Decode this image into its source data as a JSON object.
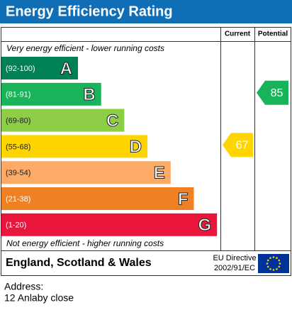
{
  "header": {
    "title": "Energy Efficiency Rating"
  },
  "columns": {
    "current": "Current",
    "potential": "Potential"
  },
  "top_note": "Very energy efficient - lower running costs",
  "bottom_note": "Not energy efficient - higher running costs",
  "bands": [
    {
      "range": "(92-100)",
      "letter": "A",
      "color": "#008054"
    },
    {
      "range": "(81-91)",
      "letter": "B",
      "color": "#19b459"
    },
    {
      "range": "(69-80)",
      "letter": "C",
      "color": "#8dce46"
    },
    {
      "range": "(55-68)",
      "letter": "D",
      "color": "#ffd500"
    },
    {
      "range": "(39-54)",
      "letter": "E",
      "color": "#fcaa65"
    },
    {
      "range": "(21-38)",
      "letter": "F",
      "color": "#ef8023"
    },
    {
      "range": "(1-20)",
      "letter": "G",
      "color": "#e9153b"
    }
  ],
  "ratings": {
    "current": {
      "value": 67,
      "band": 3,
      "color": "#ffd500"
    },
    "potential": {
      "value": 85,
      "band": 1,
      "color": "#19b459"
    }
  },
  "footer": {
    "region": "England, Scotland & Wales",
    "directive_line1": "EU Directive",
    "directive_line2": "2002/91/EC"
  },
  "address": {
    "label": "Address:",
    "value": "12 Anlaby close"
  }
}
